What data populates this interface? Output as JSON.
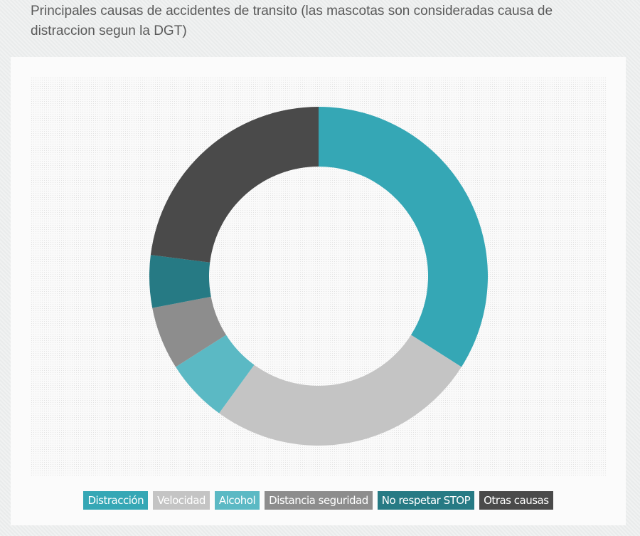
{
  "chart_data": {
    "type": "donut",
    "title": "Principales causas de accidentes de transito (las mascotas son consideradas causa de distraccion segun la DGT)",
    "categories": [
      "Distracción",
      "Velocidad",
      "Alcohol",
      "Distancia seguridad",
      "No respetar STOP",
      "Otras causas"
    ],
    "values": [
      34,
      26,
      6,
      6,
      5,
      23
    ],
    "colors": [
      "#35a7b5",
      "#c4c4c4",
      "#5bb9c4",
      "#8d8d8d",
      "#267a84",
      "#4a4a4a"
    ]
  }
}
